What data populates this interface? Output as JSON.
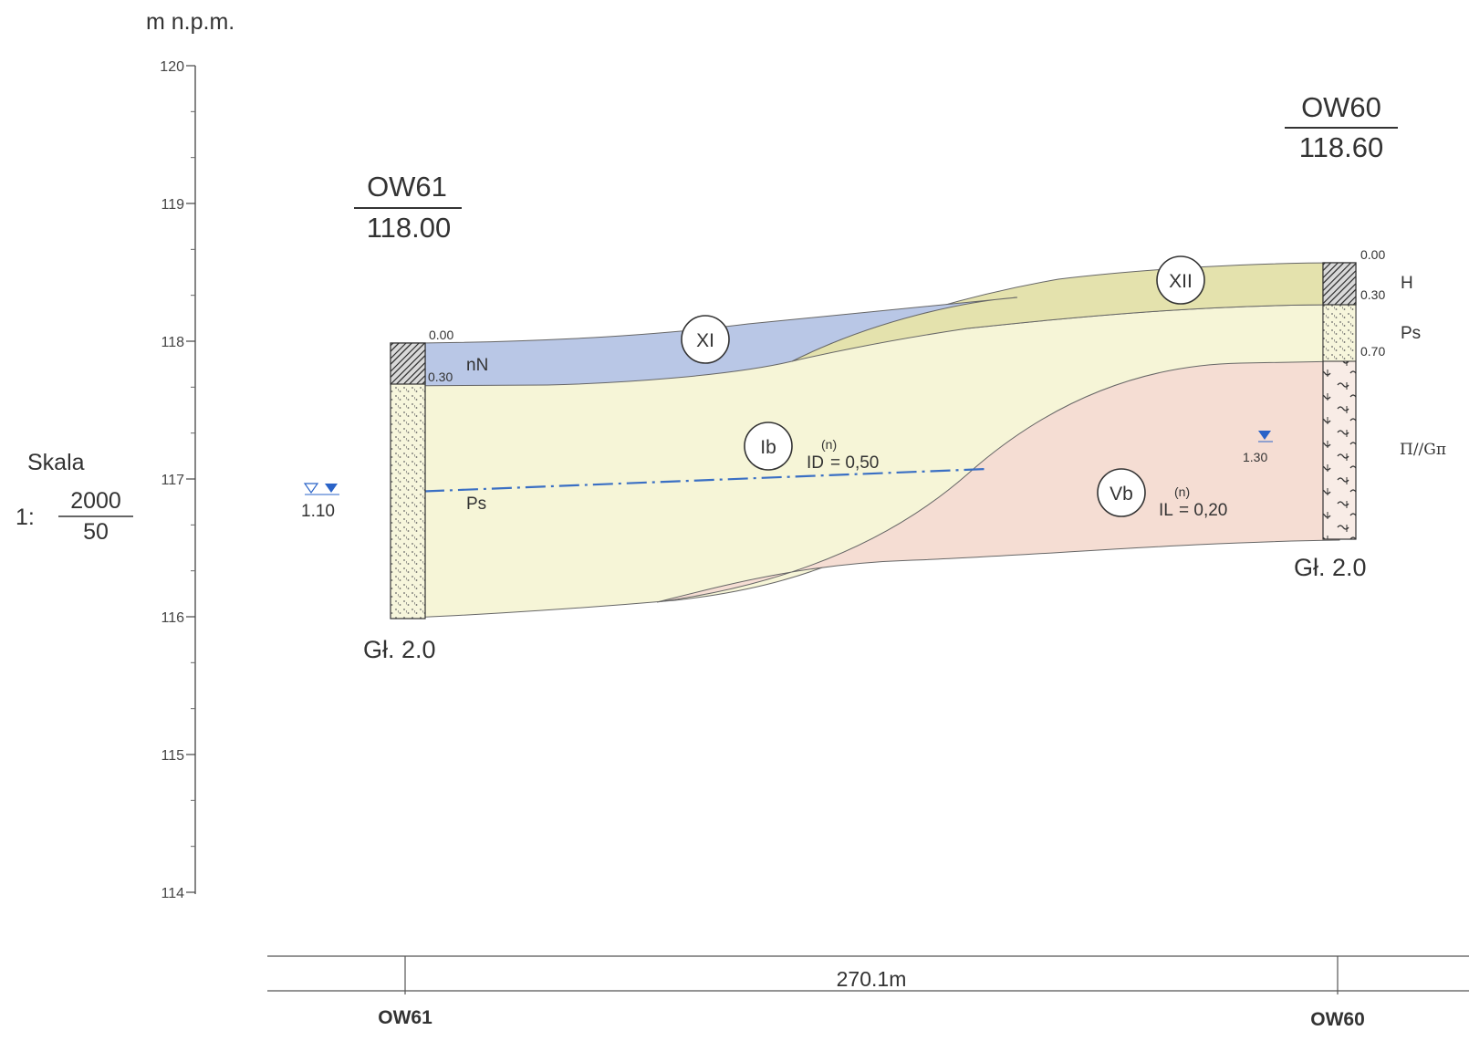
{
  "axis": {
    "unit_label": "m n.p.m.",
    "ticks": [
      "120",
      "119",
      "118",
      "117",
      "116",
      "115",
      "114"
    ]
  },
  "scale": {
    "label": "Skala",
    "prefix": "1:",
    "horizontal": "2000",
    "vertical": "50"
  },
  "boreholes": [
    {
      "name": "OW61",
      "elevation": "118.00",
      "depths": [
        "0.00",
        "0.30"
      ],
      "soil_labels": [
        "nN",
        "Ps"
      ],
      "depth_label": "Gł. 2.0",
      "water": {
        "depth": "1.10"
      }
    },
    {
      "name": "OW60",
      "elevation": "118.60",
      "depths": [
        "0.00",
        "0.30",
        "0.70"
      ],
      "soil_labels": [
        "H",
        "Ps",
        "Π//Gπ"
      ],
      "depth_label": "Gł. 2.0",
      "water": {
        "depth": "1.30"
      }
    }
  ],
  "layers": [
    {
      "id": "XI",
      "color": "#b9c7e6"
    },
    {
      "id": "XII",
      "color": "#e4e2ad"
    },
    {
      "id": "Ib",
      "color": "#f6f5d7",
      "param_name": "ID",
      "param_sup": "(n)",
      "param_value": "= 0,50"
    },
    {
      "id": "Vb",
      "color": "#f5ddd3",
      "param_name": "IL",
      "param_sup": "(n)",
      "param_value": "= 0,20"
    }
  ],
  "distance": {
    "label": "270.1m",
    "start": "OW61",
    "end": "OW60"
  },
  "colors": {
    "water_line": "#3a6fc4",
    "water_marker": "#2a63c8",
    "boundary": "#555555"
  }
}
